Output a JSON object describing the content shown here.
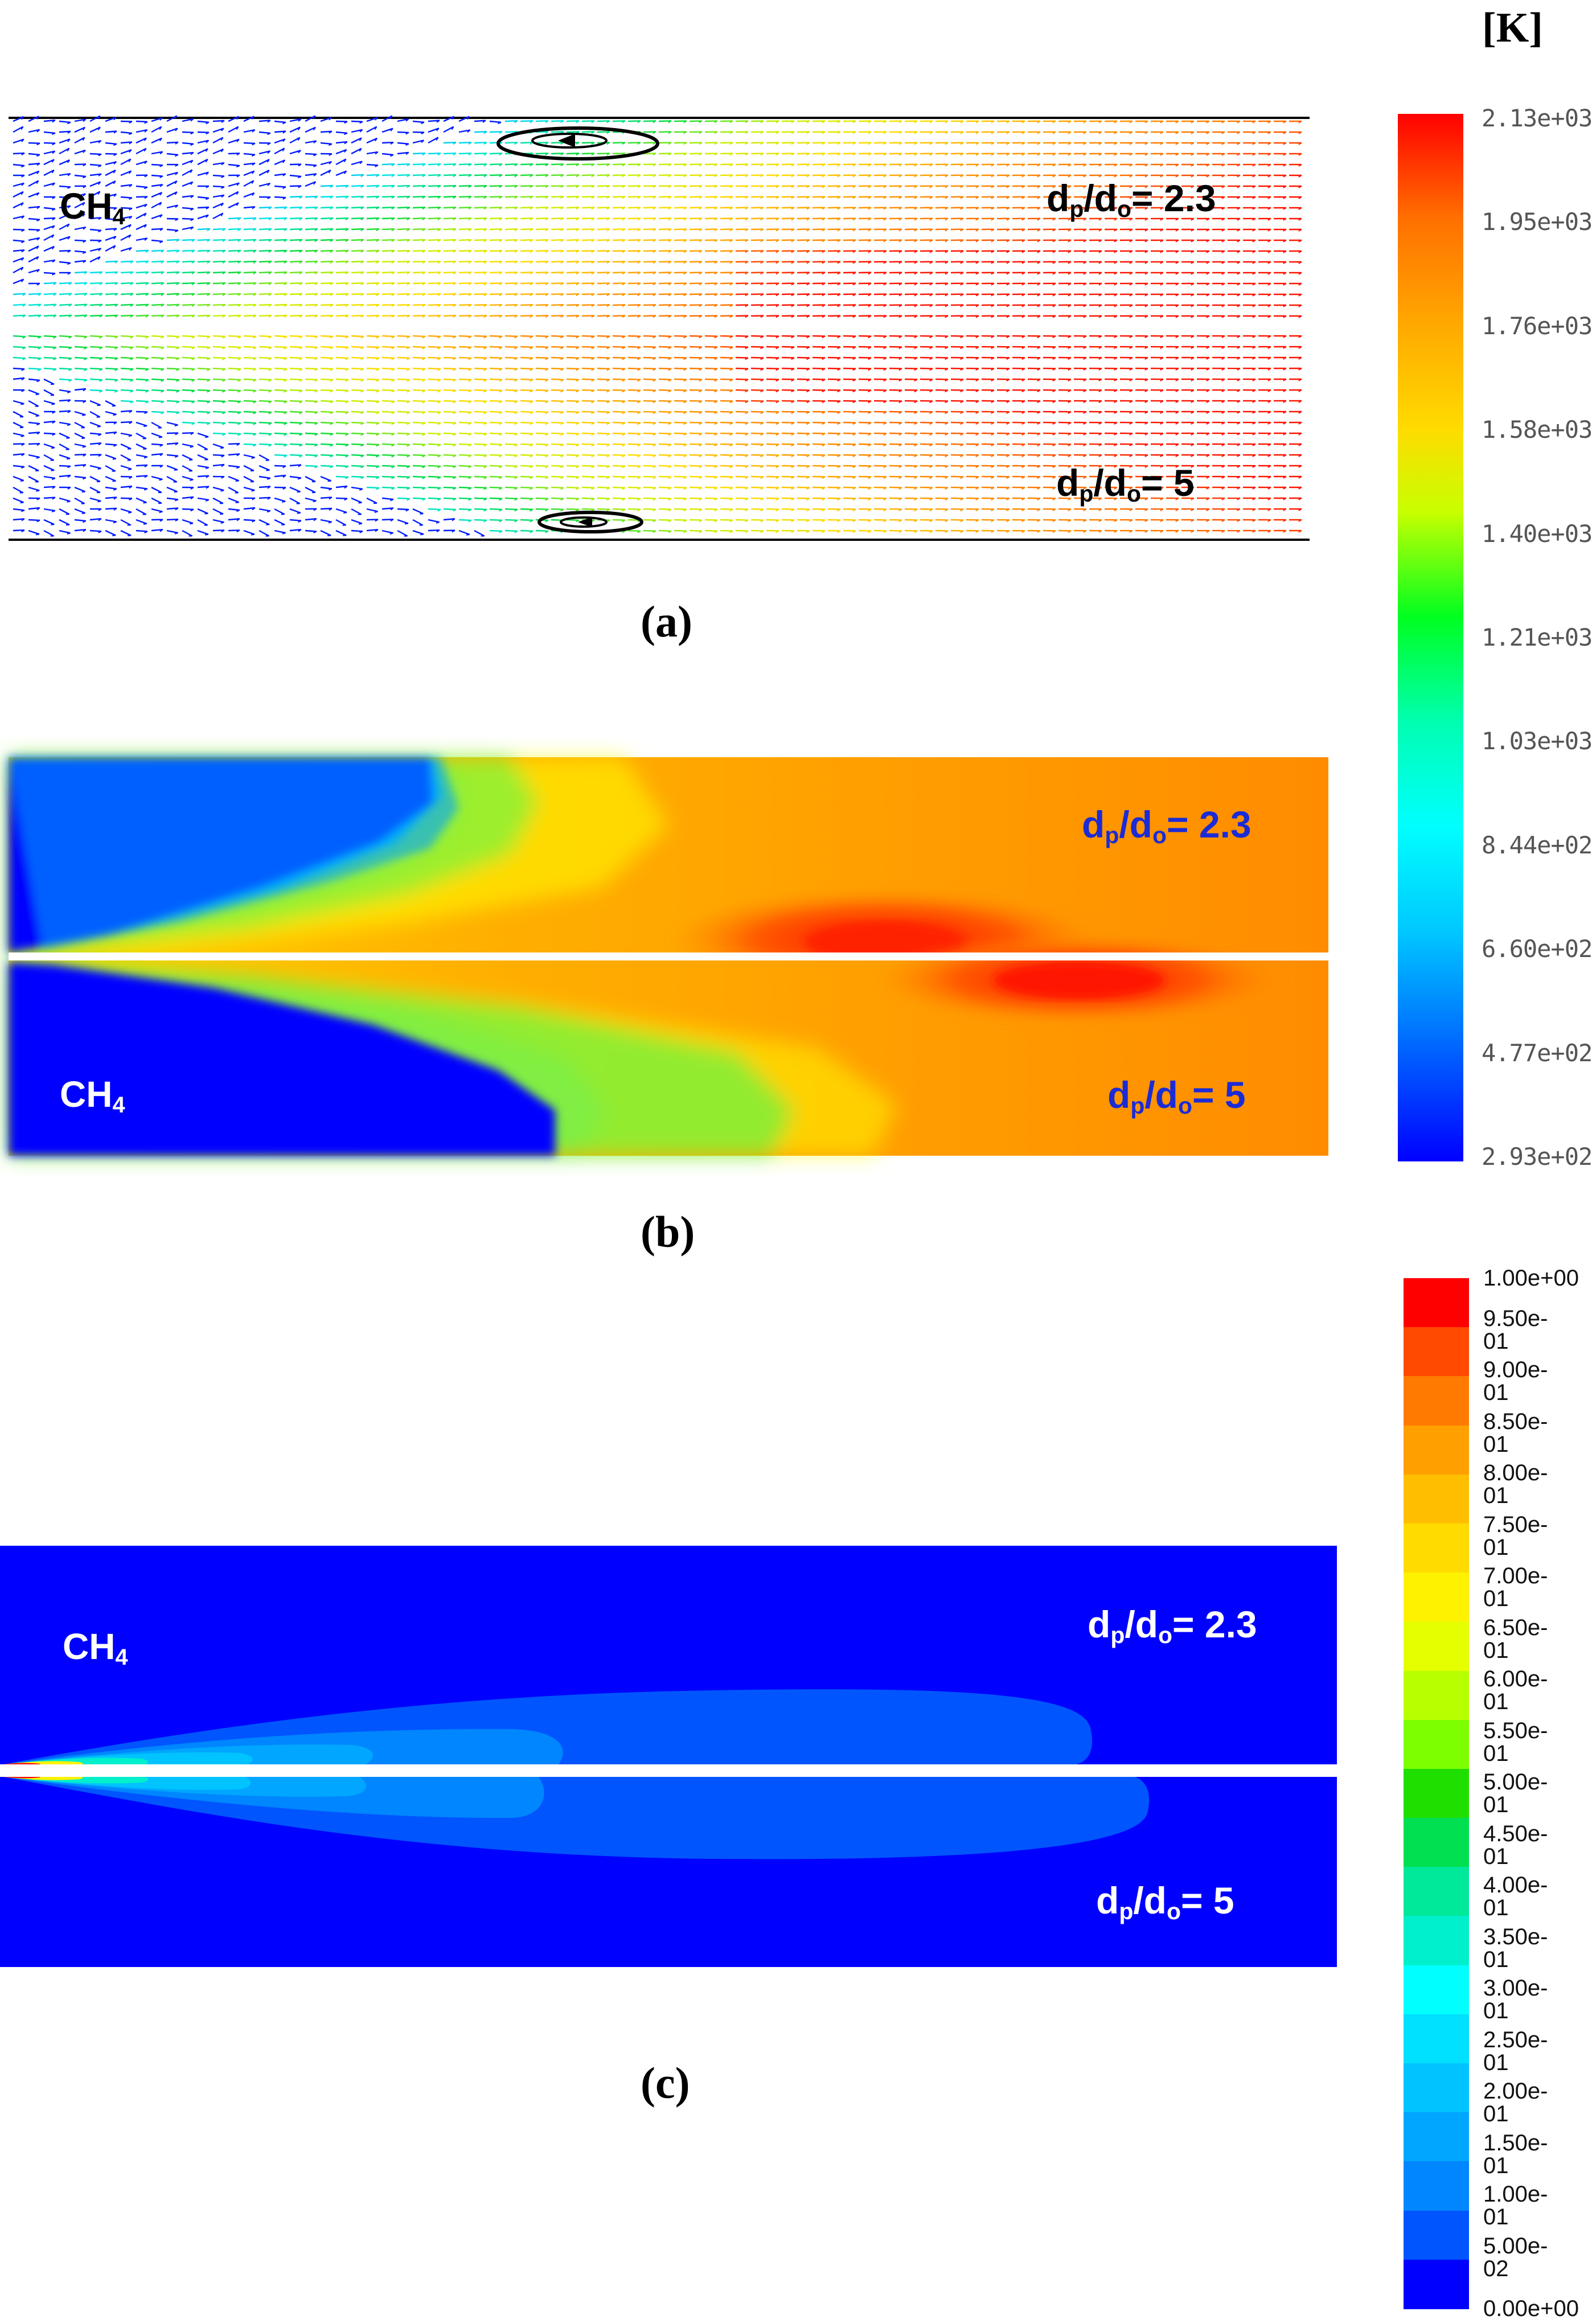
{
  "species_label": "CH",
  "species_subscript": "4",
  "ratio_labels": [
    {
      "d": "d",
      "p": "p",
      "slash": "/d",
      "o": "o",
      "value": "= 2.3"
    },
    {
      "d": "d",
      "p": "p",
      "slash": "/d",
      "o": "o",
      "value": "= 5"
    }
  ],
  "captions": {
    "a": "(a)",
    "b": "(b)",
    "c": "(c)"
  },
  "temperature_unit": "[K]",
  "temperature_ticks": [
    "2.13e+03",
    "1.95e+03",
    "1.76e+03",
    "1.58e+03",
    "1.40e+03",
    "1.21e+03",
    "1.03e+03",
    "8.44e+02",
    "6.60e+02",
    "4.77e+02",
    "2.93e+02"
  ],
  "fraction_ticks": [
    "1.00e+00",
    "9.50e-01",
    "9.00e-01",
    "8.50e-01",
    "8.00e-01",
    "7.50e-01",
    "7.00e-01",
    "6.50e-01",
    "6.00e-01",
    "5.50e-01",
    "5.00e-01",
    "4.50e-01",
    "4.00e-01",
    "3.50e-01",
    "3.00e-01",
    "2.50e-01",
    "2.00e-01",
    "1.50e-01",
    "1.00e-01",
    "5.00e-02",
    "0.00e+00"
  ],
  "fraction_colors": [
    "#ff0000",
    "#ff4a00",
    "#ff7a00",
    "#ffa000",
    "#ffbf00",
    "#ffdb00",
    "#fff200",
    "#e5ff00",
    "#b8ff00",
    "#7dff00",
    "#1fdf00",
    "#00e050",
    "#00e89a",
    "#00f0cc",
    "#00ffff",
    "#00e0ff",
    "#00c3ff",
    "#00a6ff",
    "#0086ff",
    "#0055ff",
    "#0000ff"
  ],
  "colors": {
    "label_blue": "#1b2bd6",
    "label_black": "#000000",
    "label_white": "#ffffff"
  }
}
